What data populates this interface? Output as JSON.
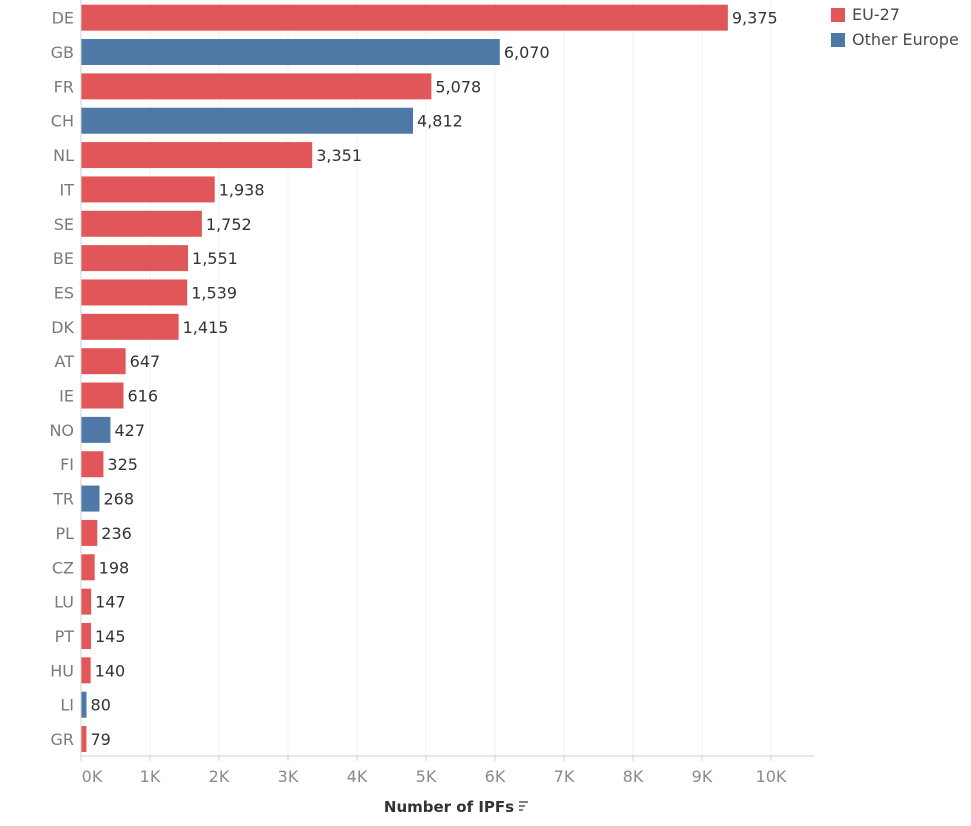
{
  "chart_data": {
    "type": "bar",
    "orientation": "horizontal",
    "categories": [
      "DE",
      "GB",
      "FR",
      "CH",
      "NL",
      "IT",
      "SE",
      "BE",
      "ES",
      "DK",
      "AT",
      "IE",
      "NO",
      "FI",
      "TR",
      "PL",
      "CZ",
      "LU",
      "PT",
      "HU",
      "LI",
      "GR"
    ],
    "values": [
      9375,
      6070,
      5078,
      4812,
      3351,
      1938,
      1752,
      1551,
      1539,
      1415,
      647,
      616,
      427,
      325,
      268,
      236,
      198,
      147,
      145,
      140,
      80,
      79
    ],
    "value_labels": [
      "9,375",
      "6,070",
      "5,078",
      "4,812",
      "3,351",
      "1,938",
      "1,752",
      "1,551",
      "1,539",
      "1,415",
      "647",
      "616",
      "427",
      "325",
      "268",
      "236",
      "198",
      "147",
      "145",
      "140",
      "80",
      "79"
    ],
    "groups": [
      "EU-27",
      "Other Europe",
      "EU-27",
      "Other Europe",
      "EU-27",
      "EU-27",
      "EU-27",
      "EU-27",
      "EU-27",
      "EU-27",
      "EU-27",
      "EU-27",
      "Other Europe",
      "EU-27",
      "Other Europe",
      "EU-27",
      "EU-27",
      "EU-27",
      "EU-27",
      "EU-27",
      "Other Europe",
      "EU-27"
    ],
    "legend": [
      {
        "name": "EU-27",
        "color": "#e15759"
      },
      {
        "name": "Other Europe",
        "color": "#4e79a7"
      }
    ],
    "legend_position": "top-right",
    "xlabel": "Number of IPFs",
    "xlabel_icon": "sort-descending-icon",
    "xlim": [
      0,
      10000
    ],
    "xticks": [
      0,
      1000,
      2000,
      3000,
      4000,
      5000,
      6000,
      7000,
      8000,
      9000,
      10000
    ],
    "xtick_labels": [
      "0K",
      "1K",
      "2K",
      "3K",
      "4K",
      "5K",
      "6K",
      "7K",
      "8K",
      "9K",
      "10K"
    ],
    "grid": "vertical"
  }
}
